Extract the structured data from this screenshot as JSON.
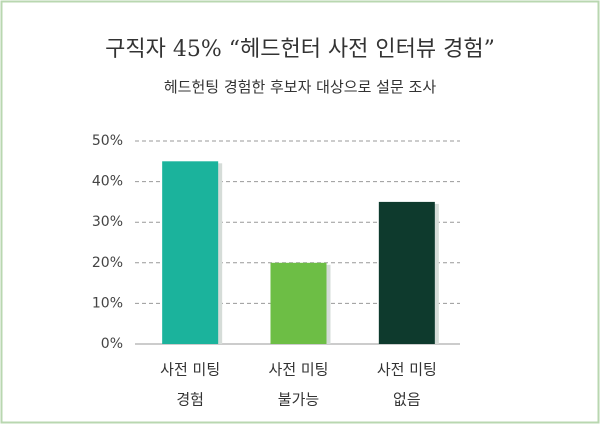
{
  "chart_data": {
    "type": "bar",
    "title": "구직자 45% “헤드헌터 사전 인터뷰 경험”",
    "subtitle": "헤드헌팅 경험한 후보자 대상으로 설문 조사",
    "categories": [
      [
        "사전 미팅",
        "경험"
      ],
      [
        "사전 미팅",
        "불가능"
      ],
      [
        "사전 미팅",
        "없음"
      ]
    ],
    "values": [
      45,
      20,
      35
    ],
    "colors": [
      "#1bb39c",
      "#6dbe45",
      "#0e3a2d"
    ],
    "ylim": [
      0,
      50
    ],
    "yticks": [
      {
        "value": 0,
        "label": "0%"
      },
      {
        "value": 10,
        "label": "10%"
      },
      {
        "value": 20,
        "label": "20%"
      },
      {
        "value": 30,
        "label": "30%"
      },
      {
        "value": 40,
        "label": "40%"
      },
      {
        "value": 50,
        "label": "50%"
      }
    ],
    "grid": true
  }
}
